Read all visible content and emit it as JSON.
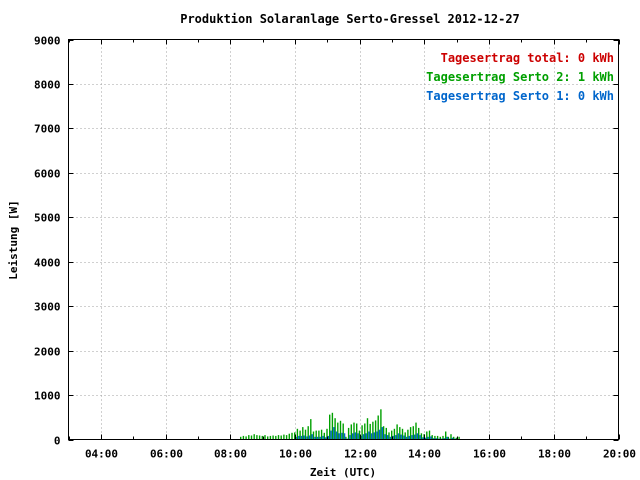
{
  "chart_data": {
    "type": "bar",
    "title": "Produktion Solaranlage Serto-Gressel 2012-12-27",
    "xlabel": "Zeit (UTC)",
    "ylabel": "Leistung [W]",
    "xlim": [
      "03:00",
      "20:00"
    ],
    "ylim": [
      0,
      9000
    ],
    "x_ticks": [
      "04:00",
      "06:00",
      "08:00",
      "10:00",
      "12:00",
      "14:00",
      "16:00",
      "18:00",
      "20:00"
    ],
    "y_ticks": [
      "0",
      "1000",
      "2000",
      "3000",
      "4000",
      "5000",
      "6000",
      "7000",
      "8000",
      "9000"
    ],
    "grid": true,
    "legend_position": "top-right",
    "legend": [
      {
        "text": "Tagesertrag total: 0 kWh",
        "color": "#cc0000"
      },
      {
        "text": "Tagesertrag Serto 2: 1 kWh",
        "color": "#00a000"
      },
      {
        "text": "Tagesertrag Serto 1: 0 kWh",
        "color": "#0066cc"
      }
    ],
    "series": [
      {
        "color": "#00a000",
        "x": [
          "08:20",
          "08:25",
          "08:30",
          "08:35",
          "08:40",
          "08:45",
          "08:50",
          "08:55",
          "09:00",
          "09:05",
          "09:10",
          "09:15",
          "09:20",
          "09:25",
          "09:30",
          "09:35",
          "09:40",
          "09:45",
          "09:50",
          "09:55",
          "10:00",
          "10:05",
          "10:10",
          "10:15",
          "10:20",
          "10:25",
          "10:30",
          "10:35",
          "10:40",
          "10:45",
          "10:50",
          "10:55",
          "11:00",
          "11:05",
          "11:10",
          "11:15",
          "11:20",
          "11:25",
          "11:30",
          "11:35",
          "11:40",
          "11:45",
          "11:50",
          "11:55",
          "12:00",
          "12:05",
          "12:10",
          "12:15",
          "12:20",
          "12:25",
          "12:30",
          "12:35",
          "12:40",
          "12:45",
          "12:50",
          "12:55",
          "13:00",
          "13:05",
          "13:10",
          "13:15",
          "13:20",
          "13:25",
          "13:30",
          "13:35",
          "13:40",
          "13:45",
          "13:50",
          "13:55",
          "14:00",
          "14:05",
          "14:10",
          "14:15",
          "14:20",
          "14:25",
          "14:30",
          "14:35",
          "14:40",
          "14:45",
          "14:50",
          "14:55",
          "15:00",
          "15:05"
        ],
        "values": [
          60,
          80,
          70,
          100,
          90,
          120,
          100,
          90,
          80,
          100,
          70,
          80,
          90,
          80,
          100,
          90,
          110,
          100,
          130,
          150,
          160,
          240,
          200,
          280,
          220,
          300,
          460,
          180,
          200,
          200,
          220,
          150,
          240,
          560,
          600,
          480,
          380,
          420,
          360,
          60,
          260,
          340,
          380,
          360,
          200,
          320,
          360,
          480,
          350,
          400,
          430,
          540,
          680,
          300,
          260,
          160,
          200,
          240,
          340,
          280,
          240,
          160,
          220,
          280,
          300,
          380,
          260,
          140,
          120,
          180,
          200,
          100,
          80,
          80,
          60,
          80,
          180,
          60,
          120,
          60,
          40,
          60
        ]
      },
      {
        "color": "#0066cc",
        "x": [
          "10:00",
          "10:05",
          "10:10",
          "10:15",
          "10:20",
          "10:25",
          "10:30",
          "10:35",
          "10:40",
          "10:45",
          "10:50",
          "10:55",
          "11:00",
          "11:05",
          "11:10",
          "11:15",
          "11:20",
          "11:25",
          "11:30",
          "11:35",
          "11:40",
          "11:45",
          "11:50",
          "11:55",
          "12:00",
          "12:05",
          "12:10",
          "12:15",
          "12:20",
          "12:25",
          "12:30",
          "12:35",
          "12:40",
          "12:45",
          "12:50",
          "12:55",
          "13:00",
          "13:05",
          "13:10",
          "13:15",
          "13:20",
          "13:25",
          "13:30",
          "13:35",
          "13:40",
          "13:45",
          "13:50",
          "13:55",
          "14:00",
          "14:05",
          "14:10",
          "14:15",
          "14:20",
          "14:25",
          "14:30",
          "14:35",
          "14:40",
          "14:45",
          "14:50",
          "14:55"
        ],
        "values": [
          60,
          80,
          80,
          90,
          70,
          90,
          120,
          60,
          60,
          60,
          80,
          50,
          80,
          200,
          280,
          180,
          140,
          150,
          140,
          20,
          100,
          140,
          160,
          140,
          80,
          120,
          140,
          180,
          140,
          160,
          180,
          220,
          280,
          120,
          100,
          60,
          80,
          100,
          140,
          110,
          90,
          60,
          80,
          100,
          110,
          140,
          100,
          50,
          40,
          60,
          70,
          30,
          30,
          20,
          20,
          30,
          60,
          20,
          40,
          20
        ]
      }
    ]
  }
}
